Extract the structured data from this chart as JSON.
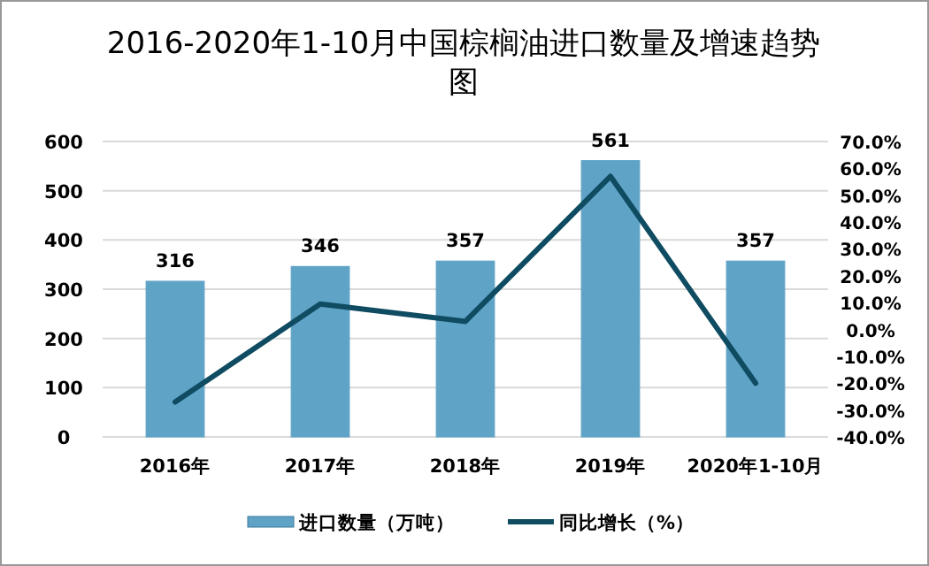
{
  "chart_data": {
    "type": "bar",
    "title": "2016-2020年1-10月中国棕榈油进口数量及增速趋势图",
    "categories": [
      "2016年",
      "2017年",
      "2018年",
      "2019年",
      "2020年1-10月"
    ],
    "series": [
      {
        "name": "进口数量（万吨）",
        "color": "#5fa3c6",
        "values": [
          316,
          346,
          357,
          561,
          357
        ],
        "value_labels": [
          "316",
          "346",
          "357",
          "561",
          "357"
        ]
      },
      {
        "name": "同比增长（%）",
        "type": "line",
        "axis": "y2",
        "color": "#0f4c62",
        "values": [
          -27,
          9.5,
          3,
          57,
          -20
        ]
      }
    ],
    "ylim": [
      0,
      600
    ],
    "yticks": [
      0,
      100,
      200,
      300,
      400,
      500,
      600
    ],
    "y2lim": [
      -40,
      70
    ],
    "y2ticks": [
      {
        "value": -40,
        "label": "-40.0%"
      },
      {
        "value": -30,
        "label": "-30.0%"
      },
      {
        "value": -20,
        "label": "-20.0%"
      },
      {
        "value": -10,
        "label": "-10.0%"
      },
      {
        "value": 0,
        "label": "0.0%"
      },
      {
        "value": 10,
        "label": "10.0%"
      },
      {
        "value": 20,
        "label": "20.0%"
      },
      {
        "value": 30,
        "label": "30.0%"
      },
      {
        "value": 40,
        "label": "40.0%"
      },
      {
        "value": 50,
        "label": "50.0%"
      },
      {
        "value": 60,
        "label": "60.0%"
      },
      {
        "value": 70,
        "label": "70.0%"
      }
    ],
    "grid": "y",
    "legend": "bottom",
    "marker": "none",
    "line_style": "solid"
  }
}
